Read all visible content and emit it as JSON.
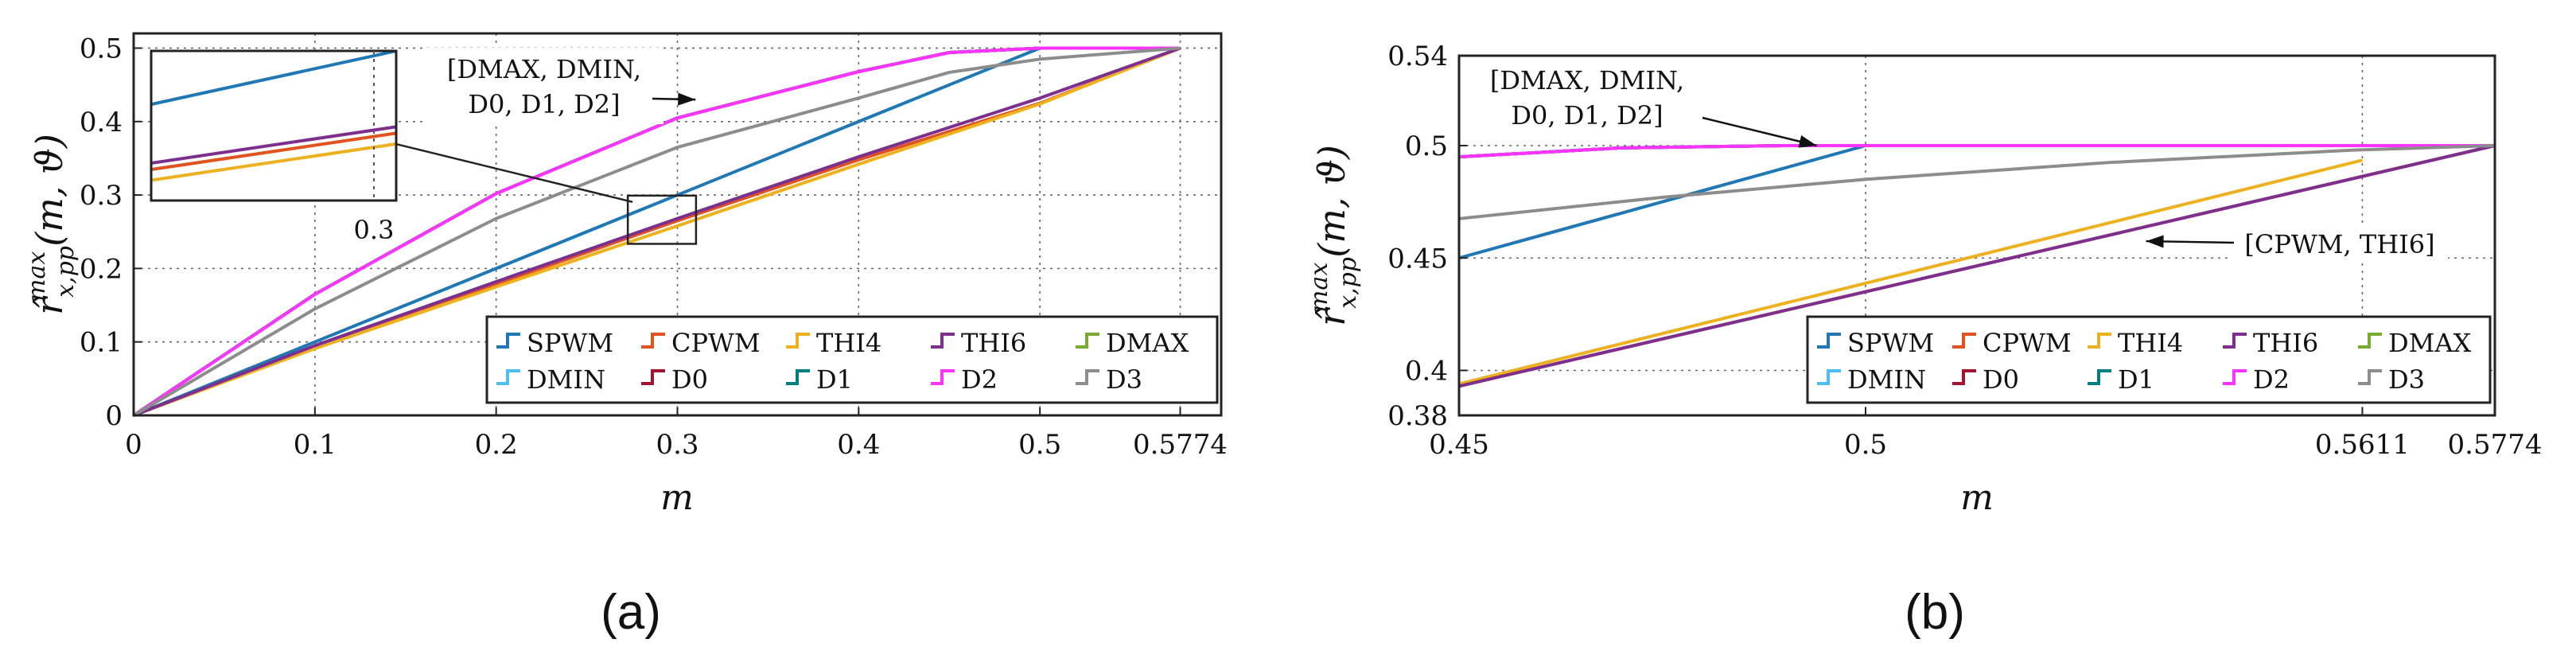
{
  "chart_data": [
    {
      "panel_label": "(a)",
      "type": "line",
      "xlabel": "m",
      "ylabel": "r̂_{x,pp}^{max}(m, ϑ)",
      "ylabel_main": "r̂",
      "ylabel_sub": "x,pp",
      "ylabel_sup": "max",
      "ylabel_args": "(m, ϑ)",
      "xlim": [
        0,
        0.6
      ],
      "ylim": [
        0,
        0.52
      ],
      "xticks": [
        0,
        0.1,
        0.2,
        0.3,
        0.4,
        0.5,
        0.5774
      ],
      "xtick_labels": [
        "0",
        "0.1",
        "0.2",
        "0.3",
        "0.4",
        "0.5",
        "0.5774"
      ],
      "yticks": [
        0,
        0.1,
        0.2,
        0.3,
        0.4,
        0.5
      ],
      "ytick_labels": [
        "0",
        "0.1",
        "0.2",
        "0.3",
        "0.4",
        "0.5"
      ],
      "grid": true,
      "legend_position": "bottom-right",
      "series": [
        {
          "name": "SPWM",
          "color": "#1f77b4",
          "points": [
            [
              0,
              0
            ],
            [
              0.1,
              0.1
            ],
            [
              0.2,
              0.2
            ],
            [
              0.3,
              0.3
            ],
            [
              0.4,
              0.4
            ],
            [
              0.5,
              0.5
            ],
            [
              0.5774,
              0.5
            ]
          ]
        },
        {
          "name": "CPWM",
          "color": "#e0531e",
          "points": [
            [
              0,
              0
            ],
            [
              0.1,
              0.0935
            ],
            [
              0.2,
              0.179
            ],
            [
              0.3,
              0.265
            ],
            [
              0.4,
              0.348
            ],
            [
              0.5,
              0.425
            ],
            [
              0.5774,
              0.5
            ]
          ]
        },
        {
          "name": "THI4",
          "color": "#edb120",
          "points": [
            [
              0,
              0
            ],
            [
              0.1,
              0.091
            ],
            [
              0.2,
              0.175
            ],
            [
              0.3,
              0.258
            ],
            [
              0.4,
              0.342
            ],
            [
              0.5,
              0.424
            ],
            [
              0.5774,
              0.5
            ]
          ]
        },
        {
          "name": "THI6",
          "color": "#7e2f8e",
          "points": [
            [
              0,
              0
            ],
            [
              0.1,
              0.095
            ],
            [
              0.2,
              0.182
            ],
            [
              0.3,
              0.268
            ],
            [
              0.4,
              0.352
            ],
            [
              0.5,
              0.432
            ],
            [
              0.5774,
              0.5
            ]
          ]
        },
        {
          "name": "DMAX",
          "color": "#77ac30",
          "points": [
            [
              0,
              0
            ],
            [
              0.1,
              0.165
            ],
            [
              0.2,
              0.302
            ],
            [
              0.3,
              0.405
            ],
            [
              0.4,
              0.468
            ],
            [
              0.45,
              0.494
            ],
            [
              0.5,
              0.5
            ],
            [
              0.5774,
              0.5
            ]
          ]
        },
        {
          "name": "DMIN",
          "color": "#4dbeee",
          "points": [
            [
              0,
              0
            ],
            [
              0.1,
              0.165
            ],
            [
              0.2,
              0.302
            ],
            [
              0.3,
              0.405
            ],
            [
              0.4,
              0.468
            ],
            [
              0.45,
              0.494
            ],
            [
              0.5,
              0.5
            ],
            [
              0.5774,
              0.5
            ]
          ]
        },
        {
          "name": "D0",
          "color": "#a2142f",
          "points": [
            [
              0,
              0
            ],
            [
              0.1,
              0.165
            ],
            [
              0.2,
              0.302
            ],
            [
              0.3,
              0.405
            ],
            [
              0.4,
              0.468
            ],
            [
              0.45,
              0.494
            ],
            [
              0.5,
              0.5
            ],
            [
              0.5774,
              0.5
            ]
          ]
        },
        {
          "name": "D1",
          "color": "#008080",
          "points": [
            [
              0,
              0
            ],
            [
              0.1,
              0.165
            ],
            [
              0.2,
              0.302
            ],
            [
              0.3,
              0.405
            ],
            [
              0.4,
              0.468
            ],
            [
              0.45,
              0.494
            ],
            [
              0.5,
              0.5
            ],
            [
              0.5774,
              0.5
            ]
          ]
        },
        {
          "name": "D2",
          "color": "#ff33ff",
          "points": [
            [
              0,
              0
            ],
            [
              0.1,
              0.165
            ],
            [
              0.2,
              0.302
            ],
            [
              0.3,
              0.405
            ],
            [
              0.4,
              0.468
            ],
            [
              0.45,
              0.494
            ],
            [
              0.5,
              0.5
            ],
            [
              0.5774,
              0.5
            ]
          ]
        },
        {
          "name": "D3",
          "color": "#8c8c8c",
          "points": [
            [
              0,
              0
            ],
            [
              0.1,
              0.145
            ],
            [
              0.2,
              0.268
            ],
            [
              0.3,
              0.365
            ],
            [
              0.4,
              0.432
            ],
            [
              0.45,
              0.467
            ],
            [
              0.5,
              0.485
            ],
            [
              0.5774,
              0.5
            ]
          ]
        }
      ],
      "annotations": [
        {
          "lines": [
            "[DMAX, DMIN,",
            "D0, D1, D2]"
          ],
          "points_to": [
            0.31,
            0.43
          ]
        }
      ],
      "inset": {
        "xlim": [
          0.27,
          0.305
        ],
        "ylim": [
          0.24,
          0.31
        ],
        "tick_label": "0.3",
        "series": [
          {
            "name": "SPWM",
            "color": "#1f77b4",
            "points": [
              [
                0.27,
                0.285
              ],
              [
                0.305,
                0.31
              ]
            ]
          },
          {
            "name": "THI6",
            "color": "#7e2f8e",
            "points": [
              [
                0.27,
                0.2575
              ],
              [
                0.305,
                0.2745
              ]
            ]
          },
          {
            "name": "CPWM",
            "color": "#e0531e",
            "points": [
              [
                0.27,
                0.2545
              ],
              [
                0.305,
                0.2715
              ]
            ]
          },
          {
            "name": "THI4",
            "color": "#edb120",
            "points": [
              [
                0.27,
                0.2495
              ],
              [
                0.305,
                0.2665
              ]
            ]
          }
        ]
      }
    },
    {
      "panel_label": "(b)",
      "type": "line",
      "xlabel": "m",
      "ylabel": "r̂_{x,pp}^{max}(m, ϑ)",
      "ylabel_main": "r̂",
      "ylabel_sub": "x,pp",
      "ylabel_sup": "max",
      "ylabel_args": "(m, ϑ)",
      "xlim": [
        0.45,
        0.5774
      ],
      "ylim": [
        0.38,
        0.54
      ],
      "xticks": [
        0.45,
        0.5,
        0.5611,
        0.5774
      ],
      "xtick_labels": [
        "0.45",
        "0.5",
        "0.5611",
        "0.5774"
      ],
      "yticks": [
        0.38,
        0.4,
        0.45,
        0.5,
        0.54
      ],
      "ytick_labels": [
        "0.38",
        "0.4",
        "0.45",
        "0.5",
        "0.54"
      ],
      "grid": true,
      "legend_position": "bottom-right",
      "series": [
        {
          "name": "SPWM",
          "color": "#1f77b4",
          "points": [
            [
              0.45,
              0.45
            ],
            [
              0.5,
              0.5
            ],
            [
              0.5774,
              0.5
            ]
          ]
        },
        {
          "name": "CPWM",
          "color": "#e0531e",
          "points": [
            [
              0.45,
              0.393
            ],
            [
              0.5774,
              0.5
            ]
          ]
        },
        {
          "name": "THI4",
          "color": "#edb120",
          "points": [
            [
              0.45,
              0.394
            ],
            [
              0.5611,
              0.4935
            ]
          ]
        },
        {
          "name": "THI6",
          "color": "#7e2f8e",
          "points": [
            [
              0.45,
              0.393
            ],
            [
              0.5774,
              0.5
            ]
          ]
        },
        {
          "name": "DMAX",
          "color": "#77ac30",
          "points": [
            [
              0.45,
              0.495
            ],
            [
              0.47,
              0.499
            ],
            [
              0.49,
              0.5
            ],
            [
              0.5774,
              0.5
            ]
          ]
        },
        {
          "name": "DMIN",
          "color": "#4dbeee",
          "points": [
            [
              0.45,
              0.495
            ],
            [
              0.47,
              0.499
            ],
            [
              0.49,
              0.5
            ],
            [
              0.5774,
              0.5
            ]
          ]
        },
        {
          "name": "D0",
          "color": "#a2142f",
          "points": [
            [
              0.45,
              0.495
            ],
            [
              0.47,
              0.499
            ],
            [
              0.49,
              0.5
            ],
            [
              0.5774,
              0.5
            ]
          ]
        },
        {
          "name": "D1",
          "color": "#008080",
          "points": [
            [
              0.45,
              0.495
            ],
            [
              0.47,
              0.499
            ],
            [
              0.49,
              0.5
            ],
            [
              0.5774,
              0.5
            ]
          ]
        },
        {
          "name": "D2",
          "color": "#ff33ff",
          "points": [
            [
              0.45,
              0.495
            ],
            [
              0.47,
              0.499
            ],
            [
              0.49,
              0.5
            ],
            [
              0.5774,
              0.5
            ]
          ]
        },
        {
          "name": "D3",
          "color": "#8c8c8c",
          "points": [
            [
              0.45,
              0.4675
            ],
            [
              0.475,
              0.477
            ],
            [
              0.5,
              0.485
            ],
            [
              0.53,
              0.4925
            ],
            [
              0.56,
              0.498
            ],
            [
              0.5774,
              0.5
            ]
          ]
        }
      ],
      "annotations": [
        {
          "lines": [
            "[DMAX, DMIN,",
            "D0, D1, D2]"
          ],
          "points_to": [
            0.494,
            0.5
          ]
        },
        {
          "lines": [
            "[CPWM, THI6]"
          ],
          "points_to": [
            0.5345,
            0.4575
          ]
        }
      ]
    }
  ]
}
